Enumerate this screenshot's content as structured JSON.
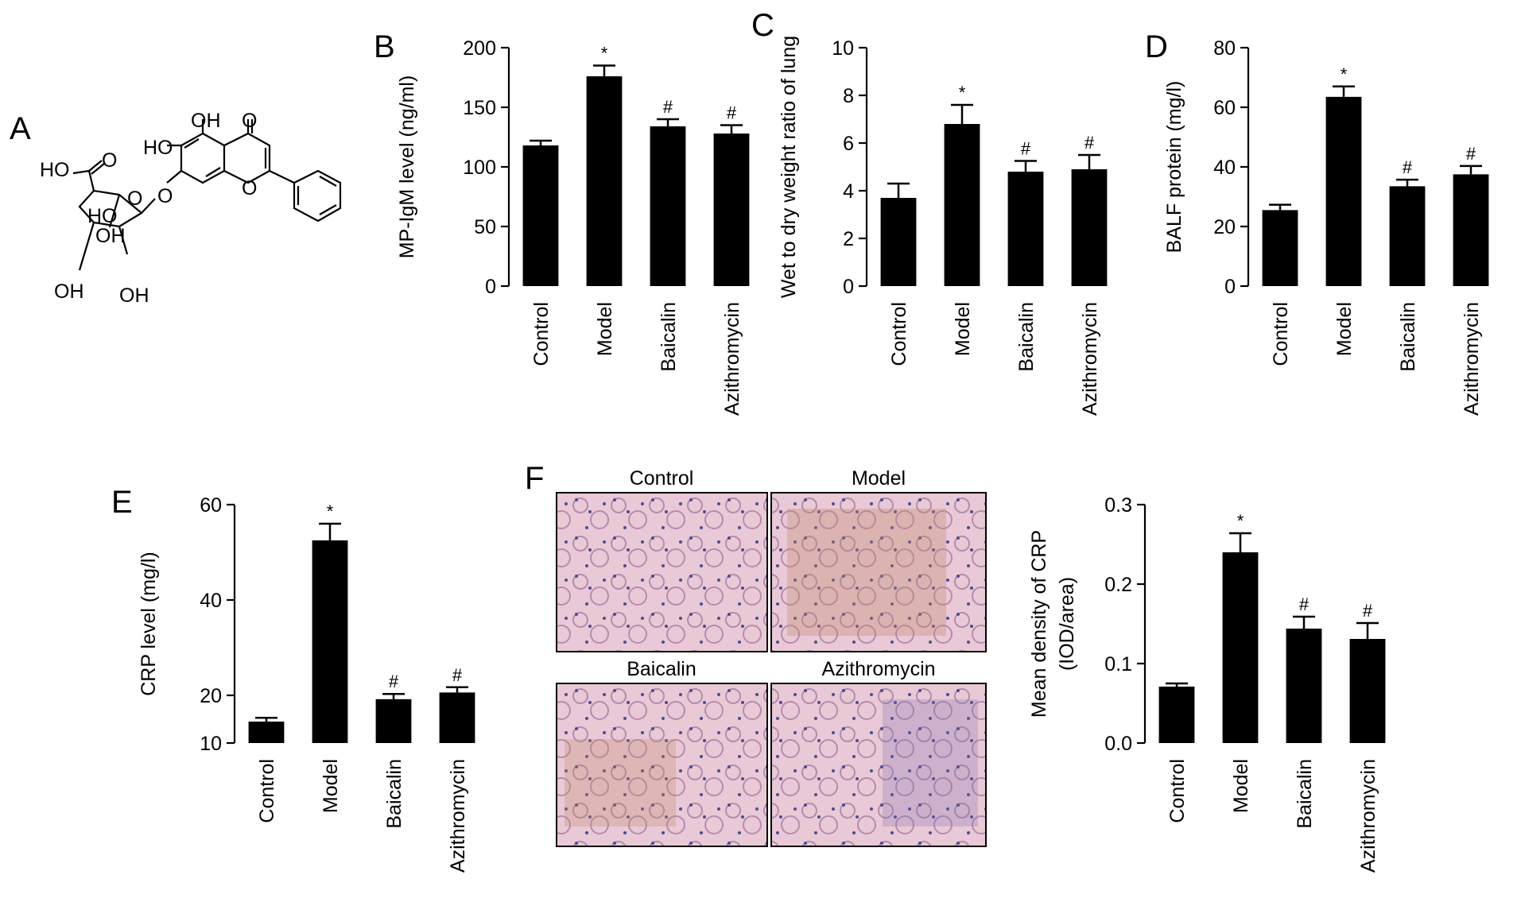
{
  "panels": [
    "A",
    "B",
    "C",
    "D",
    "E",
    "F"
  ],
  "structure": {
    "labels": [
      "OH",
      "O",
      "HO",
      "HO",
      "O",
      "O",
      "HO",
      "O",
      "O",
      "OH",
      "OH",
      "OH"
    ]
  },
  "histology": {
    "titles": [
      "Control",
      "Model",
      "Baicalin",
      "Azithromycin"
    ]
  },
  "chart_data": [
    {
      "panel": "B",
      "type": "bar",
      "categories": [
        "Control",
        "Model",
        "Baicalin",
        "Azithromycin"
      ],
      "values": [
        118,
        176,
        134,
        128
      ],
      "errors": [
        4,
        9,
        6,
        7
      ],
      "marks": [
        "",
        "*",
        "#",
        "#"
      ],
      "ylabel": "MP-IgM level (ng/ml)",
      "ylim": [
        0,
        200
      ],
      "yticks": [
        "0",
        "50",
        "100",
        "150",
        "200"
      ]
    },
    {
      "panel": "C",
      "type": "bar",
      "categories": [
        "Control",
        "Model",
        "Baicalin",
        "Azithromycin"
      ],
      "values": [
        3.7,
        6.8,
        4.8,
        4.9
      ],
      "errors": [
        0.6,
        0.8,
        0.45,
        0.6
      ],
      "marks": [
        "",
        "*",
        "#",
        "#"
      ],
      "ylabel": "Wet to dry weight ratio of lung",
      "ylim": [
        0,
        10
      ],
      "yticks": [
        "0",
        "2",
        "4",
        "6",
        "8",
        "10"
      ]
    },
    {
      "panel": "D",
      "type": "bar",
      "categories": [
        "Control",
        "Model",
        "Baicalin",
        "Azithromycin"
      ],
      "values": [
        25.5,
        63.5,
        33.5,
        37.5
      ],
      "errors": [
        1.8,
        3.5,
        2.2,
        2.8
      ],
      "marks": [
        "",
        "*",
        "#",
        "#"
      ],
      "ylabel": "BALF protein (mg/l)",
      "ylim": [
        0,
        80
      ],
      "yticks": [
        "0",
        "20",
        "40",
        "60",
        "80"
      ]
    },
    {
      "panel": "E",
      "type": "bar",
      "categories": [
        "Control",
        "Model",
        "Baicalin",
        "Azithromycin"
      ],
      "values": [
        14.5,
        52.5,
        19.2,
        20.6
      ],
      "errors": [
        0.8,
        3.5,
        1.1,
        1.1
      ],
      "marks": [
        "",
        "*",
        "#",
        "#"
      ],
      "ylabel": "CRP level (mg/l)",
      "ylim": [
        10,
        60
      ],
      "yticks": [
        "10",
        "20",
        "40",
        "60"
      ]
    },
    {
      "panel": "F",
      "type": "bar",
      "categories": [
        "Control",
        "Model",
        "Baicalin",
        "Azithromycin"
      ],
      "values": [
        0.071,
        0.24,
        0.144,
        0.131
      ],
      "errors": [
        0.004,
        0.024,
        0.015,
        0.02
      ],
      "marks": [
        "",
        "*",
        "#",
        "#"
      ],
      "ylabel": "Mean density of CRP",
      "ylabel2": "(IOD/area)",
      "ylim": [
        0,
        0.3
      ],
      "yticks": [
        "0.0",
        "0.1",
        "0.2",
        "0.3"
      ]
    }
  ]
}
